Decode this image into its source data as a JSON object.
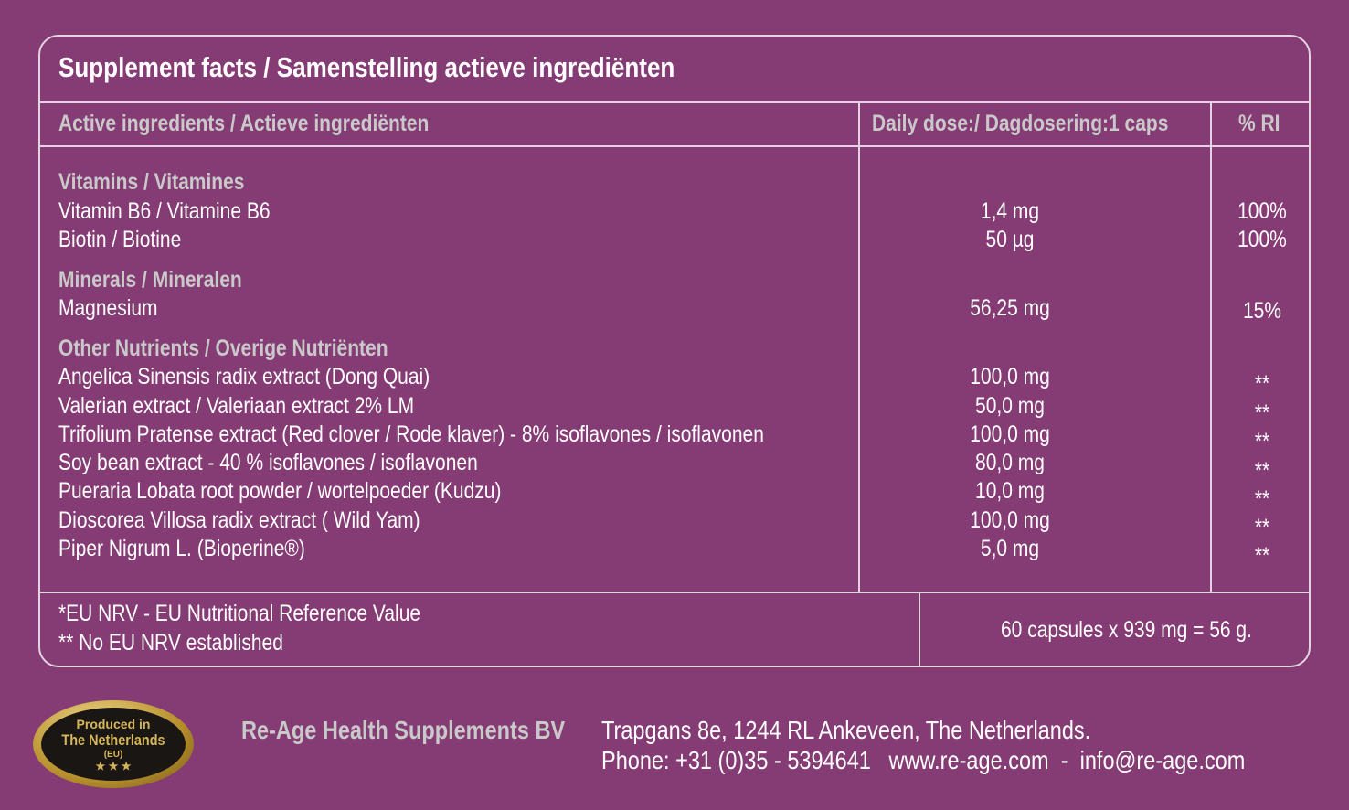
{
  "title": "Supplement facts  / Samenstelling actieve ingrediënten",
  "header": {
    "ingredients": "Active ingredients / Actieve ingrediënten",
    "dose": "Daily dose:/ Dagdosering:1 caps",
    "ri": "% RI"
  },
  "sections": [
    {
      "heading": "Vitamins / Vitamines",
      "rows": [
        {
          "name": "Vitamin B6 / Vitamine B6",
          "dose": "1,4 mg",
          "ri": "100%"
        },
        {
          "name": "Biotin / Biotine",
          "dose": "50 µg",
          "ri": "100%"
        }
      ]
    },
    {
      "heading": "Minerals / Mineralen",
      "rows": [
        {
          "name": "Magnesium",
          "dose": "56,25 mg",
          "ri": "15%"
        }
      ]
    },
    {
      "heading": "Other Nutrients / Overige Nutriënten",
      "rows": [
        {
          "name": "Angelica Sinensis radix extract (Dong Quai)",
          "dose": "100,0 mg",
          "ri": "**"
        },
        {
          "name": "Valerian extract / Valeriaan extract 2% LM",
          "dose": "50,0 mg",
          "ri": "**"
        },
        {
          "name": "Trifolium Pratense extract (Red clover / Rode klaver) - 8% isoflavones / isoflavonen",
          "dose": "100,0 mg",
          "ri": "**"
        },
        {
          "name": "Soy bean extract - 40 % isoflavones / isoflavonen",
          "dose": "80,0 mg",
          "ri": "**"
        },
        {
          "name": "Pueraria Lobata root powder / wortelpoeder (Kudzu)",
          "dose": "10,0 mg",
          "ri": "**"
        },
        {
          "name": "Dioscorea Villosa radix extract ( Wild Yam)",
          "dose": "100,0 mg",
          "ri": "**"
        },
        {
          "name": "Piper Nigrum L. (Bioperine®)",
          "dose": "5,0 mg",
          "ri": "**"
        }
      ]
    }
  ],
  "footnotes": {
    "nrv": "*EU NRV - EU Nutritional Reference Value",
    "none": "** No EU NRV established",
    "capsules": "60 capsules x 939 mg = 56 g."
  },
  "company": {
    "name": "Re-Age Health Supplements BV",
    "address": "Trapgans 8e, 1244 RL Ankeveen, The Netherlands.",
    "contact": "Phone: +31 (0)35 - 5394641   www.re-age.com  -  info@re-age.com"
  },
  "badge": {
    "line1": "Produced in",
    "line2": "The Netherlands",
    "line3": "(EU)",
    "stars": "★ ★ ★"
  }
}
